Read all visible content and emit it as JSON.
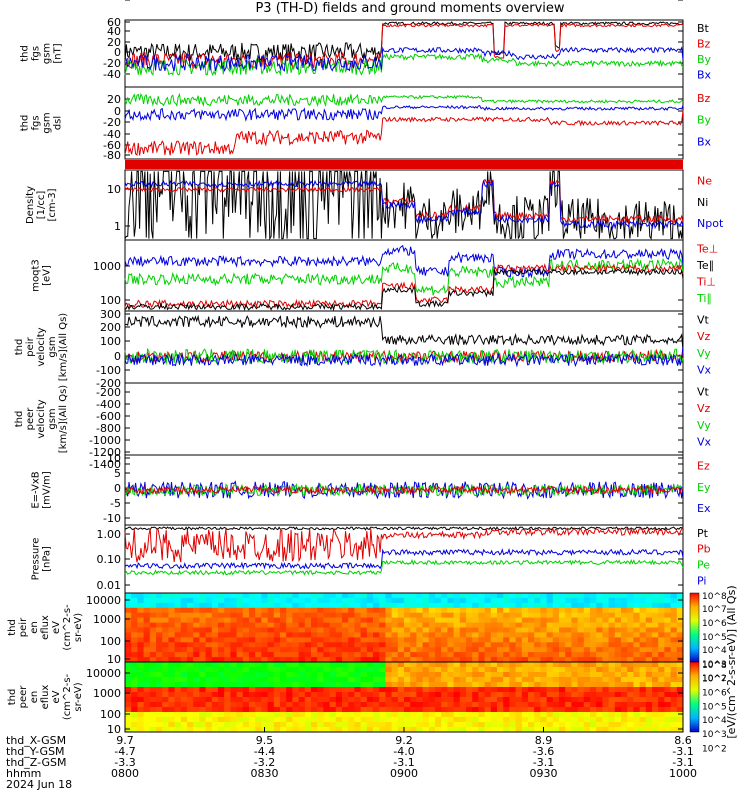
{
  "title": "P3 (TH-D) fields and ground moments overview",
  "colors": {
    "black": "#000000",
    "red": "#e00000",
    "green": "#00d000",
    "blue": "#0000e0"
  },
  "chart_data": [
    {
      "id": "p1",
      "type": "line",
      "ylabel": [
        "thd",
        "fgs",
        "gsm",
        "[nT]"
      ],
      "yticks": [
        "60",
        "40",
        "20",
        "0",
        "-20",
        "-40"
      ],
      "legend": [
        {
          "label": "Bt",
          "color": "black"
        },
        {
          "label": "Bz",
          "color": "red"
        },
        {
          "label": "By",
          "color": "green"
        },
        {
          "label": "Bx",
          "color": "blue"
        }
      ]
    },
    {
      "id": "p2",
      "type": "line",
      "ylabel": [
        "thd",
        "fgs",
        "gsm",
        "dsl"
      ],
      "yticks": [
        "20",
        "0",
        "-20",
        "-40",
        "-60",
        "-80"
      ],
      "legend": [
        {
          "label": "Bz",
          "color": "red"
        },
        {
          "label": "By",
          "color": "green"
        },
        {
          "label": "Bx",
          "color": "blue"
        }
      ]
    },
    {
      "id": "p3",
      "type": "bar",
      "note": "red flag bar"
    },
    {
      "id": "p4",
      "type": "line",
      "ylabel": [
        "Density",
        "[1/cc]",
        "[cm-3]"
      ],
      "yticks": [
        "10",
        "1"
      ],
      "legend": [
        {
          "label": "Ne",
          "color": "red"
        },
        {
          "label": "Ni",
          "color": "black"
        },
        {
          "label": "Npot",
          "color": "blue"
        }
      ]
    },
    {
      "id": "p5",
      "type": "line",
      "ylabel": [
        "moqt3",
        "[eV]"
      ],
      "yticks": [
        "1000",
        "100"
      ],
      "legend": [
        {
          "label": "Te⊥",
          "color": "red"
        },
        {
          "label": "Te∥",
          "color": "black"
        },
        {
          "label": "Ti⊥",
          "color": "red"
        },
        {
          "label": "Ti∥",
          "color": "green"
        }
      ]
    },
    {
      "id": "p6",
      "type": "line",
      "ylabel": [
        "thd",
        "peir",
        "velocity",
        "gsm",
        "[km/s](All Qs)"
      ],
      "yticks": [
        "300",
        "200",
        "100",
        "0",
        "-100",
        "-200",
        "-300"
      ],
      "legend": [
        {
          "label": "Vt",
          "color": "black"
        },
        {
          "label": "Vz",
          "color": "red"
        },
        {
          "label": "Vy",
          "color": "green"
        },
        {
          "label": "Vx",
          "color": "blue"
        }
      ]
    },
    {
      "id": "p7",
      "type": "line",
      "ylabel": [
        "thd",
        "peer",
        "velocity",
        "gsm",
        "[km/s](All Qs)"
      ],
      "yticks": [
        "-200",
        "-400",
        "-600",
        "-800",
        "-1000",
        "-1200",
        "-1400"
      ],
      "legend": [
        {
          "label": "Vt",
          "color": "black"
        },
        {
          "label": "Vz",
          "color": "red"
        },
        {
          "label": "Vy",
          "color": "green"
        },
        {
          "label": "Vx",
          "color": "blue"
        }
      ]
    },
    {
      "id": "p8",
      "type": "line",
      "ylabel": [
        "E=-VxB",
        "[mV/m]"
      ],
      "yticks": [
        "10",
        "5",
        "0",
        "-5",
        "-10"
      ],
      "legend": [
        {
          "label": "Ez",
          "color": "red"
        },
        {
          "label": "Ey",
          "color": "green"
        },
        {
          "label": "Ex",
          "color": "blue"
        }
      ]
    },
    {
      "id": "p9",
      "type": "line",
      "ylabel": [
        "Pressure",
        "[nPa]"
      ],
      "yticks": [
        "1.00",
        "0.10",
        "0.01"
      ],
      "legend": [
        {
          "label": "Pt",
          "color": "black"
        },
        {
          "label": "Pb",
          "color": "red"
        },
        {
          "label": "Pe",
          "color": "green"
        },
        {
          "label": "Pi",
          "color": "blue"
        }
      ]
    },
    {
      "id": "p10",
      "type": "heatmap",
      "ylabel": [
        "thd",
        "peir",
        "en",
        "eflux",
        "eV",
        "(cm^2-s-",
        "sr-eV)"
      ],
      "yticks": [
        "10000",
        "1000",
        "100",
        "10"
      ],
      "colorbar_ticks": [
        "10^8",
        "10^7",
        "10^6",
        "10^5",
        "10^4",
        "10^3",
        "10^2"
      ]
    },
    {
      "id": "p11",
      "type": "heatmap",
      "ylabel": [
        "thd",
        "peer",
        "en",
        "eflux",
        "eV",
        "(cm^2-s-",
        "sr-eV)"
      ],
      "yticks": [
        "10000",
        "1000",
        "100",
        "10"
      ],
      "colorbar_ticks": [
        "10^8",
        "10^7",
        "10^6",
        "10^5",
        "10^4",
        "10^3",
        "10^2"
      ]
    }
  ],
  "colorbar_label": "[eV/(cm^2-s-sr-eV)] (All Qs)",
  "x_axis": {
    "row_labels": [
      "thd_X-GSM",
      "thd_Y-GSM",
      "thd_Z-GSM",
      "hhmm",
      "2024 Jun 18"
    ],
    "ticks": [
      {
        "x": "9.7",
        "y": "-4.7",
        "z": "-3.3",
        "t": "0800"
      },
      {
        "x": "9.5",
        "y": "-4.4",
        "z": "-3.2",
        "t": "0830"
      },
      {
        "x": "9.2",
        "y": "-4.0",
        "z": "-3.1",
        "t": "0900"
      },
      {
        "x": "8.9",
        "y": "-3.6",
        "z": "-3.1",
        "t": "0930"
      },
      {
        "x": "8.6",
        "y": "-3.1",
        "z": "-3.1",
        "t": "1000"
      }
    ]
  }
}
